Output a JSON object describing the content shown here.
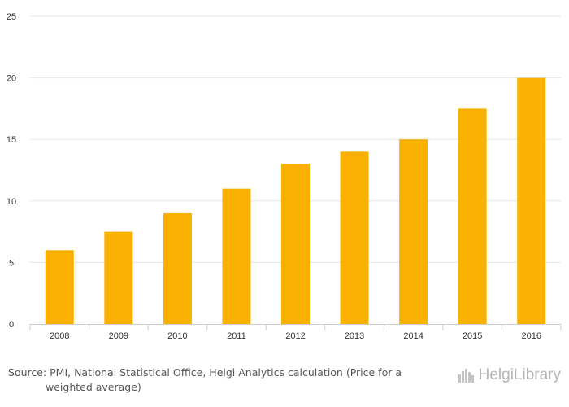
{
  "chart_data": {
    "type": "bar",
    "categories": [
      "2008",
      "2009",
      "2010",
      "2011",
      "2012",
      "2013",
      "2014",
      "2015",
      "2016"
    ],
    "values": [
      6,
      7.5,
      9,
      11,
      13,
      14,
      15,
      17.5,
      20
    ],
    "ylim": [
      0,
      25
    ],
    "yticks": [
      0,
      5,
      10,
      15,
      20,
      25
    ],
    "grid": true,
    "bar_color": "#f9b000"
  },
  "source": {
    "line1": "Source: PMI, National Statistical Office, Helgi Analytics calculation (Price for a",
    "line2": "weighted average)"
  },
  "brand": {
    "name": "HelgiLibrary"
  }
}
